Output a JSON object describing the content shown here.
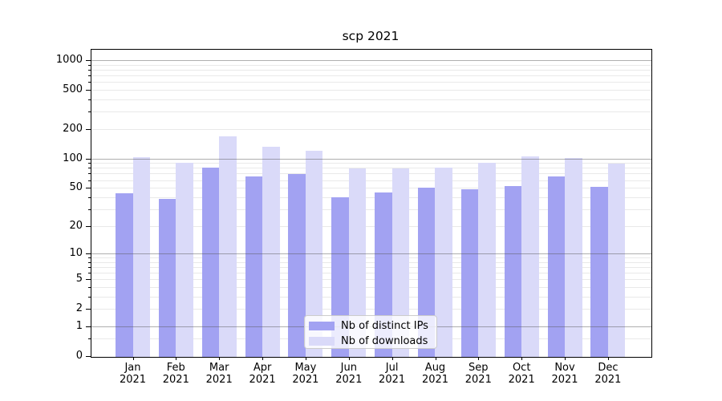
{
  "chart_data": {
    "type": "bar",
    "title": "scp 2021",
    "categories": [
      "Jan",
      "Feb",
      "Mar",
      "Apr",
      "May",
      "Jun",
      "Jul",
      "Aug",
      "Sep",
      "Oct",
      "Nov",
      "Dec"
    ],
    "x_tick_label_year": "2021",
    "series": [
      {
        "name": "Nb of distinct IPs",
        "color": "#a2a2f2",
        "values": [
          44,
          38,
          80,
          65,
          69,
          40,
          45,
          50,
          48,
          52,
          65,
          51
        ]
      },
      {
        "name": "Nb of downloads",
        "color": "#dadaf9",
        "values": [
          104,
          90,
          170,
          133,
          119,
          79,
          79,
          81,
          91,
          105,
          101,
          88
        ]
      }
    ],
    "yscale": "log1p",
    "ylim": [
      0,
      1280
    ],
    "y_ticks": [
      0,
      1,
      2,
      5,
      10,
      20,
      50,
      100,
      200,
      500,
      1000
    ],
    "y_major_gridline_values": [
      1,
      10,
      100,
      1000
    ],
    "y_minor_gridline_values": [
      0.5,
      2,
      3,
      4,
      5,
      6,
      7,
      8,
      9,
      20,
      30,
      40,
      50,
      60,
      70,
      80,
      90,
      200,
      300,
      400,
      500,
      600,
      700,
      800,
      900
    ],
    "grid": true,
    "legend_position": "lower-center"
  },
  "colors": {
    "background": "#ffffff",
    "axis": "#000000",
    "tick_label": "#000000",
    "major_gridline": "#b0b0b0",
    "minor_gridline": "#e9e9e9",
    "series_1_bar": "#a2a2f2",
    "series_2_bar": "#dadaf9",
    "legend_border": "#cccccc"
  }
}
